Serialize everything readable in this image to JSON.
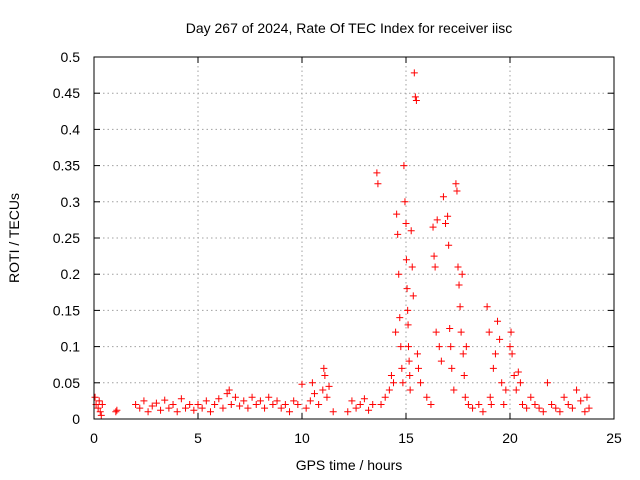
{
  "chart_data": {
    "type": "scatter",
    "title": "Day 267 of 2024, Rate Of TEC Index for receiver iisc",
    "xlabel": "GPS time / hours",
    "ylabel": "ROTI / TECUs",
    "xlim": [
      0,
      25
    ],
    "ylim": [
      0,
      0.5
    ],
    "xticks": [
      0,
      5,
      10,
      15,
      20,
      25
    ],
    "xtick_labels": [
      "0",
      "5",
      "10",
      "15",
      "20",
      "25"
    ],
    "yticks": [
      0,
      0.05,
      0.1,
      0.15,
      0.2,
      0.25,
      0.3,
      0.35,
      0.4,
      0.45,
      0.5
    ],
    "ytick_labels": [
      "0",
      "0.05",
      "0.1",
      "0.15",
      "0.2",
      "0.25",
      "0.3",
      "0.35",
      "0.4",
      "0.45",
      "0.5"
    ],
    "grid": true,
    "marker": "plus",
    "series": [
      {
        "name": "ROTI",
        "color": "#ff0000",
        "points": [
          [
            0.05,
            0.03
          ],
          [
            0.1,
            0.02
          ],
          [
            0.2,
            0.015
          ],
          [
            0.25,
            0.025
          ],
          [
            0.3,
            0.01
          ],
          [
            0.35,
            0.005
          ],
          [
            0.4,
            0.02
          ],
          [
            1.05,
            0.01
          ],
          [
            1.1,
            0.012
          ],
          [
            2.0,
            0.02
          ],
          [
            2.2,
            0.015
          ],
          [
            2.4,
            0.025
          ],
          [
            2.6,
            0.01
          ],
          [
            2.8,
            0.018
          ],
          [
            3.0,
            0.022
          ],
          [
            3.2,
            0.012
          ],
          [
            3.4,
            0.026
          ],
          [
            3.6,
            0.015
          ],
          [
            3.8,
            0.02
          ],
          [
            4.0,
            0.01
          ],
          [
            4.2,
            0.028
          ],
          [
            4.4,
            0.015
          ],
          [
            4.6,
            0.02
          ],
          [
            4.8,
            0.012
          ],
          [
            5.0,
            0.02
          ],
          [
            5.2,
            0.015
          ],
          [
            5.4,
            0.025
          ],
          [
            5.6,
            0.01
          ],
          [
            5.8,
            0.02
          ],
          [
            6.0,
            0.028
          ],
          [
            6.2,
            0.015
          ],
          [
            6.4,
            0.035
          ],
          [
            6.5,
            0.04
          ],
          [
            6.6,
            0.02
          ],
          [
            6.8,
            0.03
          ],
          [
            7.0,
            0.018
          ],
          [
            7.2,
            0.025
          ],
          [
            7.4,
            0.015
          ],
          [
            7.6,
            0.03
          ],
          [
            7.8,
            0.02
          ],
          [
            8.0,
            0.025
          ],
          [
            8.2,
            0.015
          ],
          [
            8.4,
            0.03
          ],
          [
            8.6,
            0.02
          ],
          [
            8.8,
            0.025
          ],
          [
            9.0,
            0.015
          ],
          [
            9.2,
            0.02
          ],
          [
            9.4,
            0.01
          ],
          [
            9.6,
            0.025
          ],
          [
            9.8,
            0.02
          ],
          [
            10.0,
            0.048
          ],
          [
            10.2,
            0.015
          ],
          [
            10.4,
            0.025
          ],
          [
            10.5,
            0.05
          ],
          [
            10.6,
            0.035
          ],
          [
            10.8,
            0.02
          ],
          [
            11.0,
            0.04
          ],
          [
            11.05,
            0.07
          ],
          [
            11.1,
            0.06
          ],
          [
            11.2,
            0.03
          ],
          [
            11.3,
            0.045
          ],
          [
            11.5,
            0.01
          ],
          [
            12.2,
            0.01
          ],
          [
            12.4,
            0.025
          ],
          [
            12.6,
            0.015
          ],
          [
            12.8,
            0.02
          ],
          [
            13.0,
            0.028
          ],
          [
            13.2,
            0.012
          ],
          [
            13.4,
            0.02
          ],
          [
            13.6,
            0.34
          ],
          [
            13.65,
            0.325
          ],
          [
            13.8,
            0.02
          ],
          [
            14.0,
            0.03
          ],
          [
            14.2,
            0.04
          ],
          [
            14.3,
            0.06
          ],
          [
            14.4,
            0.05
          ],
          [
            14.5,
            0.12
          ],
          [
            14.55,
            0.283
          ],
          [
            14.6,
            0.255
          ],
          [
            14.65,
            0.2
          ],
          [
            14.7,
            0.14
          ],
          [
            14.75,
            0.1
          ],
          [
            14.8,
            0.07
          ],
          [
            14.85,
            0.05
          ],
          [
            14.9,
            0.35
          ],
          [
            14.95,
            0.3
          ],
          [
            15.0,
            0.27
          ],
          [
            15.02,
            0.22
          ],
          [
            15.05,
            0.18
          ],
          [
            15.08,
            0.15
          ],
          [
            15.1,
            0.13
          ],
          [
            15.12,
            0.1
          ],
          [
            15.15,
            0.08
          ],
          [
            15.18,
            0.06
          ],
          [
            15.2,
            0.04
          ],
          [
            15.25,
            0.26
          ],
          [
            15.3,
            0.21
          ],
          [
            15.35,
            0.17
          ],
          [
            15.4,
            0.478
          ],
          [
            15.45,
            0.445
          ],
          [
            15.5,
            0.44
          ],
          [
            15.55,
            0.09
          ],
          [
            15.6,
            0.07
          ],
          [
            15.7,
            0.05
          ],
          [
            16.0,
            0.03
          ],
          [
            16.2,
            0.02
          ],
          [
            16.3,
            0.265
          ],
          [
            16.35,
            0.225
          ],
          [
            16.4,
            0.21
          ],
          [
            16.45,
            0.12
          ],
          [
            16.5,
            0.275
          ],
          [
            16.6,
            0.1
          ],
          [
            16.7,
            0.08
          ],
          [
            16.8,
            0.307
          ],
          [
            16.9,
            0.27
          ],
          [
            17.0,
            0.28
          ],
          [
            17.05,
            0.24
          ],
          [
            17.1,
            0.125
          ],
          [
            17.15,
            0.1
          ],
          [
            17.2,
            0.07
          ],
          [
            17.3,
            0.04
          ],
          [
            17.4,
            0.325
          ],
          [
            17.45,
            0.315
          ],
          [
            17.5,
            0.21
          ],
          [
            17.55,
            0.185
          ],
          [
            17.6,
            0.155
          ],
          [
            17.65,
            0.12
          ],
          [
            17.7,
            0.2
          ],
          [
            17.75,
            0.09
          ],
          [
            17.8,
            0.06
          ],
          [
            17.85,
            0.03
          ],
          [
            17.9,
            0.1
          ],
          [
            18.0,
            0.02
          ],
          [
            18.2,
            0.015
          ],
          [
            18.5,
            0.02
          ],
          [
            18.7,
            0.01
          ],
          [
            18.9,
            0.155
          ],
          [
            19.0,
            0.12
          ],
          [
            19.05,
            0.03
          ],
          [
            19.1,
            0.02
          ],
          [
            19.2,
            0.07
          ],
          [
            19.3,
            0.09
          ],
          [
            19.4,
            0.135
          ],
          [
            19.5,
            0.11
          ],
          [
            19.6,
            0.05
          ],
          [
            19.7,
            0.02
          ],
          [
            19.8,
            0.04
          ],
          [
            20.0,
            0.1
          ],
          [
            20.05,
            0.12
          ],
          [
            20.1,
            0.09
          ],
          [
            20.2,
            0.06
          ],
          [
            20.3,
            0.04
          ],
          [
            20.4,
            0.065
          ],
          [
            20.5,
            0.05
          ],
          [
            20.6,
            0.02
          ],
          [
            20.8,
            0.015
          ],
          [
            21.0,
            0.03
          ],
          [
            21.2,
            0.02
          ],
          [
            21.4,
            0.015
          ],
          [
            21.6,
            0.01
          ],
          [
            21.8,
            0.05
          ],
          [
            22.0,
            0.02
          ],
          [
            22.2,
            0.015
          ],
          [
            22.4,
            0.01
          ],
          [
            22.6,
            0.03
          ],
          [
            22.8,
            0.02
          ],
          [
            23.0,
            0.015
          ],
          [
            23.2,
            0.04
          ],
          [
            23.4,
            0.025
          ],
          [
            23.6,
            0.01
          ],
          [
            23.7,
            0.03
          ],
          [
            23.8,
            0.015
          ]
        ]
      }
    ]
  }
}
